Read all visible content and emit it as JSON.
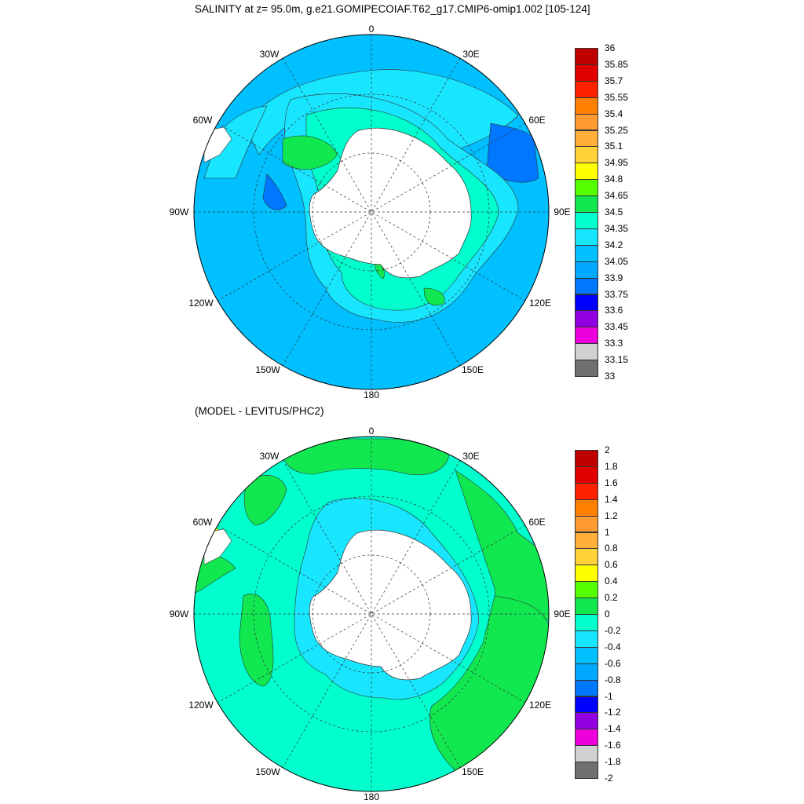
{
  "title": "SALINITY at z=  95.0m, g.e21.GOMIPECOIAF.T62_g17.CMIP6-omip1.002 [105-124]",
  "subtitle": "(MODEL - LEVITUS/PHC2)",
  "lon_labels": [
    "0",
    "30E",
    "60E",
    "90E",
    "120E",
    "150E",
    "180",
    "150W",
    "120W",
    "90W",
    "60W",
    "30W"
  ],
  "colorbar_top": {
    "ticks": [
      "36",
      "35.85",
      "35.7",
      "35.55",
      "35.4",
      "35.25",
      "35.1",
      "34.95",
      "34.8",
      "34.65",
      "34.5",
      "34.35",
      "34.2",
      "34.05",
      "33.9",
      "33.75",
      "33.6",
      "33.45",
      "33.3",
      "33.15",
      "33"
    ],
    "colors": [
      "#c00000",
      "#e00000",
      "#ff2200",
      "#ff8000",
      "#ff9a30",
      "#ffb03a",
      "#ffd23a",
      "#ffff00",
      "#55ff00",
      "#11e850",
      "#00ffcc",
      "#18e6ff",
      "#00c0ff",
      "#00a8ff",
      "#0077ff",
      "#0000ff",
      "#9000e0",
      "#ee00dd",
      "#d0d0d0",
      "#707070"
    ]
  },
  "colorbar_bottom": {
    "ticks": [
      "2",
      "1.8",
      "1.6",
      "1.4",
      "1.2",
      "1",
      "0.8",
      "0.6",
      "0.4",
      "0.2",
      "0",
      "-0.2",
      "-0.4",
      "-0.6",
      "-0.8",
      "-1",
      "-1.2",
      "-1.4",
      "-1.6",
      "-1.8",
      "-2"
    ],
    "colors": [
      "#c00000",
      "#e00000",
      "#ff2200",
      "#ff8000",
      "#ff9a30",
      "#ffb03a",
      "#ffd23a",
      "#ffff00",
      "#55ff00",
      "#11e850",
      "#00ffcc",
      "#18e6ff",
      "#00c0ff",
      "#00a8ff",
      "#0077ff",
      "#0000ff",
      "#9000e0",
      "#ee00dd",
      "#d0d0d0",
      "#707070"
    ]
  }
}
